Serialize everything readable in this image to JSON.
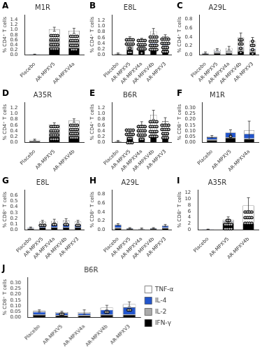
{
  "chart_data": [
    {
      "type": "bar",
      "stacked": true,
      "grid": false,
      "title": "M1R",
      "ylabel": "% CD4⁺ T cells",
      "ylim": [
        0,
        1.6
      ],
      "yticks": [
        {
          "value": 0.0,
          "label": "0.0"
        },
        0.2,
        0.4,
        0.6,
        0.8,
        {
          "value": 1.0,
          "label": "1.0"
        },
        1.2,
        1.4
      ],
      "categories": [
        "Placebo",
        "AR-MPXV5",
        "AR-MPXV4a"
      ],
      "series": [
        {
          "name": "IFN-γ",
          "color": "#000000",
          "values": [
            0.01,
            0.3,
            0.28
          ]
        },
        {
          "name": "IL-2",
          "color": "#aaaaaa",
          "values": [
            0.005,
            0.28,
            0.26
          ]
        },
        {
          "name": "IL-4",
          "color": "#2255cc",
          "values": [
            0.002,
            0.02,
            0.02
          ]
        },
        {
          "name": "TNF-α",
          "color": "#ffffff",
          "values": [
            0.005,
            0.42,
            0.4
          ]
        }
      ],
      "errors": [
        0.01,
        0.08,
        0.1
      ],
      "annotations": [
        {
          "text": "A"
        },
        {
          "category": "AR-MPXV5",
          "text": "****\n****\n****\n****"
        },
        {
          "category": "AR-MPXV4a",
          "text": "***\n****\n****\n****"
        }
      ]
    },
    {
      "type": "bar",
      "stacked": true,
      "grid": false,
      "title": "E8L",
      "ylabel": "% CD4⁺ T cells",
      "ylim": [
        0,
        1.4
      ],
      "yticks": [
        {
          "value": 0.0,
          "label": "0.0"
        },
        0.2,
        0.4,
        0.6,
        0.8,
        {
          "value": 1.0,
          "label": "1.0"
        },
        1.2
      ],
      "categories": [
        "Placebo",
        "AR-MPXV5",
        "AR-MPXV4a",
        "AR-MPXV4b",
        "AR-MPXV3"
      ],
      "series": [
        {
          "name": "IFN-γ",
          "color": "#000000",
          "values": [
            0.02,
            0.18,
            0.16,
            0.2,
            0.18
          ]
        },
        {
          "name": "IL-2",
          "color": "#aaaaaa",
          "values": [
            0.01,
            0.16,
            0.14,
            0.18,
            0.16
          ]
        },
        {
          "name": "IL-4",
          "color": "#2255cc",
          "values": [
            0.005,
            0.02,
            0.02,
            0.02,
            0.02
          ]
        },
        {
          "name": "TNF-α",
          "color": "#ffffff",
          "values": [
            0.01,
            0.22,
            0.2,
            0.42,
            0.28
          ]
        }
      ],
      "errors": [
        0.02,
        0.05,
        0.06,
        0.1,
        0.06
      ],
      "annotations": [
        {
          "text": "B"
        },
        {
          "category": "AR-MPXV5",
          "text": "**\n*\n****\n****"
        },
        {
          "category": "AR-MPXV4a",
          "text": "*\n****\n****\n****"
        },
        {
          "category": "AR-MPXV4b",
          "text": "****\n****\n****\n****"
        },
        {
          "category": "AR-MPXV3",
          "text": "***\n***\n****\n****"
        }
      ]
    },
    {
      "type": "bar",
      "stacked": true,
      "grid": false,
      "title": "A29L",
      "ylabel": "% CD4⁺ T cells",
      "ylim": [
        0,
        0.9
      ],
      "yticks": [
        {
          "value": 0.0,
          "label": "0.0"
        },
        0.2,
        0.4,
        0.6,
        0.8
      ],
      "categories": [
        "Placebo",
        "AR-MPXV5",
        "AR-MPXV4a",
        "AR-MPXV4b",
        "AR-MPXV3"
      ],
      "series": [
        {
          "name": "IFN-γ",
          "color": "#000000",
          "values": [
            0.02,
            0.04,
            0.04,
            0.08,
            0.06
          ]
        },
        {
          "name": "IL-2",
          "color": "#aaaaaa",
          "values": [
            0.01,
            0.03,
            0.04,
            0.08,
            0.06
          ]
        },
        {
          "name": "IL-4",
          "color": "#2255cc",
          "values": [
            0.005,
            0.01,
            0.01,
            0.01,
            0.01
          ]
        },
        {
          "name": "TNF-α",
          "color": "#ffffff",
          "values": [
            0.01,
            0.04,
            0.06,
            0.22,
            0.18
          ]
        }
      ],
      "errors": [
        0.02,
        0.02,
        0.04,
        0.1,
        0.08
      ],
      "annotations": [
        {
          "text": "C"
        },
        {
          "category": "AR-MPXV4b",
          "text": "*\n*\n**\n**"
        },
        {
          "category": "AR-MPXV3",
          "text": "*\n*\n**\n*"
        }
      ]
    },
    {
      "type": "bar",
      "stacked": true,
      "grid": false,
      "title": "A35R",
      "ylabel": "% CD4⁺ T cells",
      "ylim": [
        0,
        1.4
      ],
      "yticks": [
        {
          "value": 0.0,
          "label": "0.0"
        },
        0.2,
        0.4,
        0.6,
        0.8,
        {
          "value": 1.0,
          "label": "1.0"
        },
        1.2
      ],
      "categories": [
        "Placebo",
        "AR-MPXV5",
        "AR-MPXV4b"
      ],
      "series": [
        {
          "name": "IFN-γ",
          "color": "#000000",
          "values": [
            0.04,
            0.2,
            0.22
          ]
        },
        {
          "name": "IL-2",
          "color": "#aaaaaa",
          "values": [
            0.02,
            0.18,
            0.2
          ]
        },
        {
          "name": "IL-4",
          "color": "#2255cc",
          "values": [
            0.01,
            0.02,
            0.02
          ]
        },
        {
          "name": "TNF-α",
          "color": "#ffffff",
          "values": [
            0.02,
            0.22,
            0.32
          ]
        }
      ],
      "errors": [
        0.02,
        0.06,
        0.06
      ],
      "annotations": [
        {
          "text": "D"
        },
        {
          "category": "AR-MPXV5",
          "text": "****\n****\n****\n****"
        },
        {
          "category": "AR-MPXV4b",
          "text": "****\n****\n****\n****"
        }
      ]
    },
    {
      "type": "bar",
      "stacked": true,
      "grid": false,
      "title": "B6R",
      "ylabel": "% CD4⁺ T cells",
      "ylim": [
        0,
        1.4
      ],
      "yticks": [
        {
          "value": 0.0,
          "label": "0.0"
        },
        0.2,
        0.4,
        0.6,
        0.8,
        {
          "value": 1.0,
          "label": "1.0"
        },
        1.2
      ],
      "categories": [
        "Placebo",
        "AR-MPXV5",
        "AR-MPXV4a",
        "AR-MPXV4b",
        "AR-MPXV3"
      ],
      "series": [
        {
          "name": "IFN-γ",
          "color": "#000000",
          "values": [
            0.02,
            0.14,
            0.14,
            0.18,
            0.14
          ]
        },
        {
          "name": "IL-2",
          "color": "#aaaaaa",
          "values": [
            0.01,
            0.12,
            0.12,
            0.16,
            0.14
          ]
        },
        {
          "name": "IL-4",
          "color": "#2255cc",
          "values": [
            0.005,
            0.02,
            0.02,
            0.02,
            0.02
          ]
        },
        {
          "name": "TNF-α",
          "color": "#ffffff",
          "values": [
            0.01,
            0.12,
            0.34,
            0.6,
            0.44
          ]
        }
      ],
      "errors": [
        0.02,
        0.06,
        0.1,
        0.16,
        0.12
      ],
      "annotations": [
        {
          "text": "E"
        },
        {
          "category": "AR-MPXV5",
          "text": "***\n**\n****\n****"
        },
        {
          "category": "AR-MPXV4a",
          "text": "**\n****\n****\n****"
        },
        {
          "category": "AR-MPXV4b",
          "text": "****\n****\n****\n****"
        },
        {
          "category": "AR-MPXV3",
          "text": "***\n***\n****\n****"
        }
      ]
    },
    {
      "type": "bar",
      "stacked": true,
      "grid": false,
      "title": "M1R",
      "ylabel": "% CD8⁺ T cells",
      "ylim": [
        0,
        0.35
      ],
      "yticks": [
        {
          "value": 0.0,
          "label": "0.00"
        },
        0.05,
        {
          "value": 0.1,
          "label": "0.10"
        },
        0.15,
        {
          "value": 0.2,
          "label": "0.20"
        },
        0.25,
        {
          "value": 0.3,
          "label": "0.30"
        }
      ],
      "categories": [
        "Placebo",
        "AR-MPXV5",
        "AR-MPXV4a"
      ],
      "series": [
        {
          "name": "IFN-γ",
          "color": "#000000",
          "values": [
            0.02,
            0.04,
            0.03
          ]
        },
        {
          "name": "IL-2",
          "color": "#aaaaaa",
          "values": [
            0.005,
            0.005,
            0.005
          ]
        },
        {
          "name": "IL-4",
          "color": "#2255cc",
          "values": [
            0.02,
            0.04,
            0.04
          ]
        },
        {
          "name": "TNF-α",
          "color": "#ffffff",
          "values": [
            0.005,
            0.005,
            0.03
          ]
        }
      ],
      "errors": [
        0.01,
        0.02,
        0.08
      ],
      "annotations": [
        {
          "text": "F"
        },
        {
          "category": "AR-MPXV5",
          "text": "*"
        }
      ]
    },
    {
      "type": "bar",
      "stacked": true,
      "grid": false,
      "title": "E8L",
      "ylabel": "% CD8⁺ T cells",
      "ylim": [
        0,
        0.7
      ],
      "yticks": [
        {
          "value": 0.0,
          "label": "0.0"
        },
        0.1,
        0.2,
        0.3,
        0.4,
        0.5,
        0.6
      ],
      "categories": [
        "Placebo",
        "AR-MPXV5",
        "AR-MPXV4a",
        "AR-MPXV4b",
        "AR-MPXV3"
      ],
      "series": [
        {
          "name": "IFN-γ",
          "color": "#000000",
          "values": [
            0.02,
            0.04,
            0.04,
            0.04,
            0.04
          ]
        },
        {
          "name": "IL-2",
          "color": "#aaaaaa",
          "values": [
            0.005,
            0.005,
            0.005,
            0.005,
            0.005
          ]
        },
        {
          "name": "IL-4",
          "color": "#2255cc",
          "values": [
            0.01,
            0.06,
            0.05,
            0.06,
            0.04
          ]
        },
        {
          "name": "TNF-α",
          "color": "#ffffff",
          "values": [
            0.005,
            0.04,
            0.06,
            0.06,
            0.06
          ]
        }
      ],
      "errors": [
        0.01,
        0.02,
        0.03,
        0.03,
        0.02
      ],
      "annotations": [
        {
          "text": "G"
        },
        {
          "category": "AR-MPXV5",
          "text": "***"
        },
        {
          "category": "AR-MPXV4a",
          "text": "**"
        },
        {
          "category": "AR-MPXV4b",
          "text": "**"
        },
        {
          "category": "AR-MPXV3",
          "text": "**"
        }
      ]
    },
    {
      "type": "bar",
      "stacked": true,
      "grid": false,
      "title": "A29L",
      "ylabel": "% CD8⁺ T cells",
      "ylim": [
        0,
        0.9
      ],
      "yticks": [
        {
          "value": 0.0,
          "label": "0.0"
        },
        0.2,
        0.4,
        0.6,
        0.8
      ],
      "categories": [
        "Placebo",
        "AR-MPXV5",
        "AR-MPXV4a",
        "AR-MPXV4b",
        "AR-MPXV3"
      ],
      "series": [
        {
          "name": "IFN-γ",
          "color": "#000000",
          "values": [
            0.04,
            0.02,
            0.01,
            0.02,
            0.04
          ]
        },
        {
          "name": "IL-2",
          "color": "#aaaaaa",
          "values": [
            0.01,
            0.005,
            0.005,
            0.005,
            0.01
          ]
        },
        {
          "name": "IL-4",
          "color": "#2255cc",
          "values": [
            0.06,
            0.01,
            0.01,
            0.01,
            0.04
          ]
        },
        {
          "name": "TNF-α",
          "color": "#ffffff",
          "values": [
            0.01,
            0.005,
            0.005,
            0.005,
            0.01
          ]
        }
      ],
      "errors": [
        0.02,
        0.01,
        0.01,
        0.01,
        0.02
      ],
      "annotations": [
        {
          "text": "H"
        }
      ]
    },
    {
      "type": "bar",
      "stacked": true,
      "grid": false,
      "title": "A35R",
      "ylabel": "% CD8⁺ T cells",
      "ylim": [
        0,
        13
      ],
      "yticks": [
        0,
        2,
        4,
        6,
        8,
        10,
        12
      ],
      "categories": [
        "Placebo",
        "AR-MPXV5",
        "AR-MPXV4b"
      ],
      "series": [
        {
          "name": "IFN-γ",
          "color": "#000000",
          "values": [
            0.1,
            2.2,
            2.0
          ]
        },
        {
          "name": "IL-2",
          "color": "#aaaaaa",
          "values": [
            0.05,
            0.5,
            0.3
          ]
        },
        {
          "name": "IL-4",
          "color": "#2255cc",
          "values": [
            0.02,
            0.1,
            0.1
          ]
        },
        {
          "name": "TNF-α",
          "color": "#ffffff",
          "values": [
            0.02,
            0.4,
            5.5
          ]
        }
      ],
      "errors": [
        0.05,
        1.0,
        2.5
      ],
      "annotations": [
        {
          "text": "I"
        },
        {
          "category": "AR-MPXV5",
          "text": "****\n****\n**"
        },
        {
          "category": "AR-MPXV4b",
          "text": "****\n****\n****"
        }
      ]
    },
    {
      "type": "bar",
      "stacked": true,
      "grid": false,
      "legend": "right",
      "title": "B6R",
      "ylabel": "% CD8⁺ T cells",
      "ylim": [
        0,
        0.35
      ],
      "yticks": [
        {
          "value": 0.0,
          "label": "0.00"
        },
        0.05,
        {
          "value": 0.1,
          "label": "0.10"
        },
        0.15,
        {
          "value": 0.2,
          "label": "0.20"
        },
        0.25,
        {
          "value": 0.3,
          "label": "0.30"
        }
      ],
      "categories": [
        "Placebo",
        "AR-MPXV5",
        "AR-MPXV4a",
        "AR-MPXV4b",
        "AR-MPXV3"
      ],
      "series": [
        {
          "name": "IFN-γ",
          "color": "#000000",
          "values": [
            0.02,
            0.016,
            0.014,
            0.02,
            0.022
          ]
        },
        {
          "name": "IL-2",
          "color": "#aaaaaa",
          "values": [
            0.005,
            0.005,
            0.005,
            0.005,
            0.005
          ]
        },
        {
          "name": "IL-4",
          "color": "#2255cc",
          "values": [
            0.022,
            0.016,
            0.016,
            0.04,
            0.06
          ]
        },
        {
          "name": "TNF-α",
          "color": "#ffffff",
          "values": [
            0.008,
            0.008,
            0.01,
            0.02,
            0.028
          ]
        }
      ],
      "errors": [
        0.01,
        0.008,
        0.02,
        0.02,
        0.02
      ],
      "annotations": [
        {
          "text": "J"
        },
        {
          "category": "AR-MPXV5",
          "text": "**"
        },
        {
          "category": "AR-MPXV4b",
          "text": "**"
        },
        {
          "category": "AR-MPXV3",
          "text": "**"
        }
      ]
    }
  ]
}
